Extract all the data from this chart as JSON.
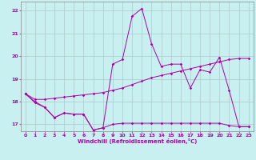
{
  "xlabel": "Windchill (Refroidissement éolien,°C)",
  "background_color": "#c8f0f0",
  "grid_color": "#b0c8c8",
  "line_color": "#aa00aa",
  "xlim": [
    -0.5,
    23.5
  ],
  "ylim": [
    16.7,
    22.4
  ],
  "yticks": [
    17,
    18,
    19,
    20,
    21,
    22
  ],
  "xticks": [
    0,
    1,
    2,
    3,
    4,
    5,
    6,
    7,
    8,
    9,
    10,
    11,
    12,
    13,
    14,
    15,
    16,
    17,
    18,
    19,
    20,
    21,
    22,
    23
  ],
  "curve_bottom_x": [
    0,
    1,
    2,
    3,
    4,
    5,
    6,
    7,
    8,
    9,
    10,
    11,
    12,
    13,
    14,
    15,
    16,
    17,
    18,
    19,
    20,
    21,
    22,
    23
  ],
  "curve_bottom_y": [
    18.35,
    17.95,
    17.75,
    17.3,
    17.5,
    17.45,
    17.45,
    16.75,
    16.85,
    17.0,
    17.05,
    17.05,
    17.05,
    17.05,
    17.05,
    17.05,
    17.05,
    17.05,
    17.05,
    17.05,
    17.05,
    16.95,
    16.9,
    16.9
  ],
  "curve_rise_x": [
    0,
    1,
    2,
    3,
    4,
    5,
    6,
    7,
    8,
    9,
    10,
    11,
    12,
    13,
    14,
    15,
    16,
    17,
    18,
    19,
    20,
    21,
    22,
    23
  ],
  "curve_rise_y": [
    18.35,
    18.1,
    18.1,
    18.15,
    18.2,
    18.25,
    18.3,
    18.35,
    18.4,
    18.5,
    18.6,
    18.75,
    18.9,
    19.05,
    19.15,
    19.25,
    19.35,
    19.45,
    19.55,
    19.65,
    19.75,
    19.85,
    19.9,
    19.9
  ],
  "curve_peak_x": [
    0,
    1,
    2,
    3,
    4,
    5,
    6,
    7,
    8,
    9,
    10,
    11,
    12,
    13,
    14,
    15,
    16,
    17,
    18,
    19,
    20,
    21,
    22,
    23
  ],
  "curve_peak_y": [
    18.35,
    18.0,
    17.75,
    17.3,
    17.5,
    17.45,
    17.45,
    16.75,
    16.85,
    19.65,
    19.85,
    21.75,
    22.1,
    20.55,
    19.55,
    19.65,
    19.65,
    18.6,
    19.4,
    19.3,
    19.95,
    18.5,
    16.9,
    16.9
  ]
}
